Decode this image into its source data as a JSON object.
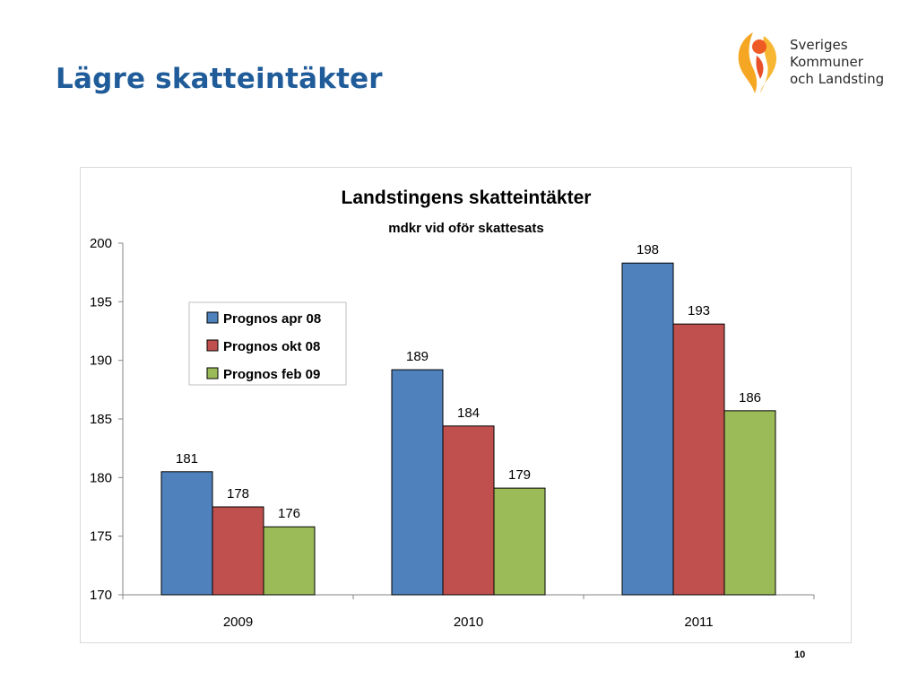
{
  "slide": {
    "title": "Lägre skatteintäkter",
    "page_number": "10"
  },
  "logo": {
    "lines": [
      "Sveriges",
      "Kommuner",
      "och Landsting"
    ]
  },
  "colors": {
    "title": "#1f5c99",
    "series": [
      "#4f81bd",
      "#c0504d",
      "#9bbb59"
    ]
  },
  "chart_data": {
    "type": "bar",
    "title": "Landstingens skatteintäkter",
    "subtitle": "mdkr vid oför skattesats",
    "categories": [
      "2009",
      "2010",
      "2011"
    ],
    "series": [
      {
        "name": "Prognos apr 08",
        "values": [
          180.5,
          189.2,
          198.3
        ],
        "labels": [
          "181",
          "189",
          "198"
        ]
      },
      {
        "name": "Prognos okt 08",
        "values": [
          177.5,
          184.4,
          193.1
        ],
        "labels": [
          "178",
          "184",
          "193"
        ]
      },
      {
        "name": "Prognos feb 09",
        "values": [
          175.8,
          179.1,
          185.7
        ],
        "labels": [
          "176",
          "179",
          "186"
        ]
      }
    ],
    "ylim": [
      170,
      200
    ],
    "yticks": [
      "170",
      "175",
      "180",
      "185",
      "190",
      "195",
      "200"
    ],
    "grid": false,
    "legend_position": "upper-left"
  }
}
